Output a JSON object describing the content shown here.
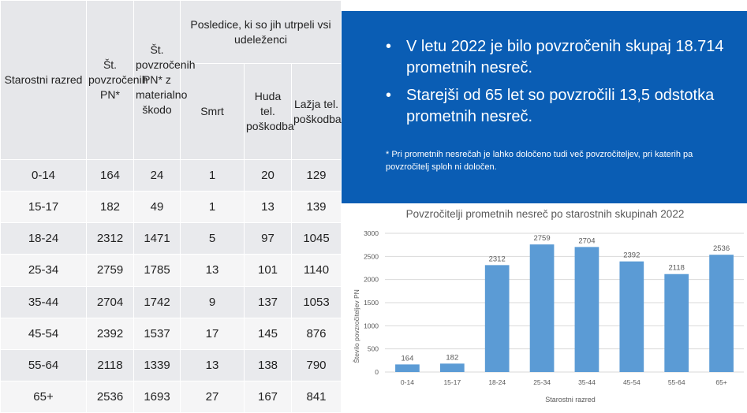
{
  "table": {
    "header": {
      "age": "Starostni razred",
      "count": "Št. povzročenih PN*",
      "material": "Št. povzročenih PN* z materialno škodo",
      "consequences": "Posledice, ki so jih utrpeli vsi udeleženci",
      "death": "Smrt",
      "serious": "Huda tel. poškodba",
      "minor": "Lažja tel. poškodba"
    },
    "rows": [
      {
        "age": "0-14",
        "count": "164",
        "material": "24",
        "death": "1",
        "serious": "20",
        "minor": "129"
      },
      {
        "age": "15-17",
        "count": "182",
        "material": "49",
        "death": "1",
        "serious": "13",
        "minor": "139"
      },
      {
        "age": "18-24",
        "count": "2312",
        "material": "1471",
        "death": "5",
        "serious": "97",
        "minor": "1045"
      },
      {
        "age": "25-34",
        "count": "2759",
        "material": "1785",
        "death": "13",
        "serious": "101",
        "minor": "1140"
      },
      {
        "age": "35-44",
        "count": "2704",
        "material": "1742",
        "death": "9",
        "serious": "137",
        "minor": "1053"
      },
      {
        "age": "45-54",
        "count": "2392",
        "material": "1537",
        "death": "17",
        "serious": "145",
        "minor": "876"
      },
      {
        "age": "55-64",
        "count": "2118",
        "material": "1339",
        "death": "13",
        "serious": "138",
        "minor": "790"
      },
      {
        "age": "65+",
        "count": "2536",
        "material": "1693",
        "death": "27",
        "serious": "167",
        "minor": "841"
      }
    ]
  },
  "info": {
    "bullets": [
      "V letu 2022 je bilo povzročenih skupaj 18.714 prometnih nesreč.",
      "Starejši od 65 let so povzročili 13,5 odstotka prometnih nesreč."
    ],
    "footnote": "* Pri prometnih nesrečah je lahko določeno tudi več povzročiteljev, pri katerih pa povzročitelj sploh ni določen.",
    "bullet_glyph": "•"
  },
  "chart_data": {
    "type": "bar",
    "title": "Povzročitelji prometnih nesreč po starostnih skupinah 2022",
    "xlabel": "Starostni razred",
    "ylabel": "Število povzročiteljev PN",
    "categories": [
      "0-14",
      "15-17",
      "18-24",
      "25-34",
      "35-44",
      "45-54",
      "55-64",
      "65+"
    ],
    "values": [
      164,
      182,
      2312,
      2759,
      2704,
      2392,
      2118,
      2536
    ],
    "ylim": [
      0,
      3000
    ],
    "yticks": [
      0,
      500,
      1000,
      1500,
      2000,
      2500,
      3000
    ],
    "grid": true,
    "data_labels": true,
    "bar_color": "#5b9bd5"
  },
  "colors": {
    "info_background": "#0a5db4",
    "table_header": "#e6e7ea"
  }
}
